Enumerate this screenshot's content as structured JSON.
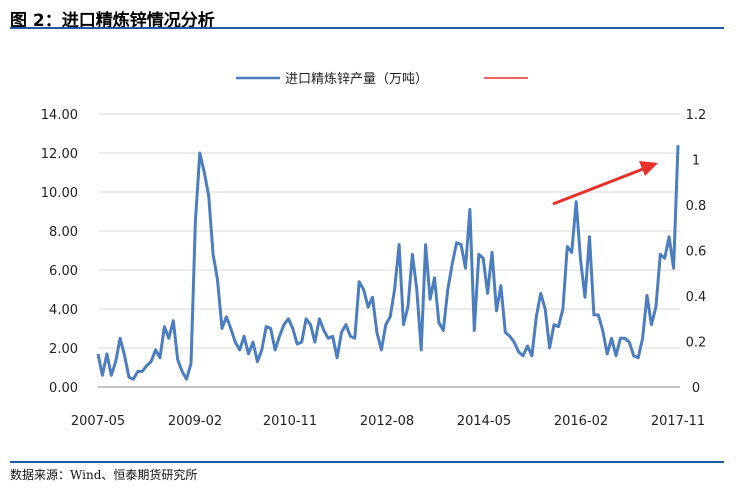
{
  "figure": {
    "title": "图 2：进口精炼锌情况分析",
    "source": "数据来源：Wind、恒泰期货研究所"
  },
  "colors": {
    "line": "#4a7ebf",
    "arrow": "#e8312a",
    "rule": "#1f5aa3",
    "grid": "#d9d9d9",
    "axis": "#888888"
  },
  "chart_data": {
    "type": "line",
    "title": "",
    "xlabel": "",
    "ylabel": "",
    "x_ticks": [
      "2007-05",
      "2009-02",
      "2010-11",
      "2012-08",
      "2014-05",
      "2016-02",
      "2017-11"
    ],
    "y_left": {
      "ylim": [
        0,
        14
      ],
      "ticks": [
        "0.00",
        "2.00",
        "4.00",
        "6.00",
        "8.00",
        "10.00",
        "12.00",
        "14.00"
      ]
    },
    "y_right": {
      "ylim": [
        0,
        1.2
      ],
      "ticks": [
        "0",
        "0.2",
        "0.4",
        "0.6",
        "0.8",
        "1",
        "1.2"
      ]
    },
    "grid": "horizontal",
    "legend": {
      "position": "top-center",
      "entries": [
        "进口精炼锌产量（万吨）",
        ""
      ]
    },
    "series": [
      {
        "name": "进口精炼锌产量（万吨）",
        "axis": "left",
        "values": [
          1.7,
          0.6,
          1.7,
          0.6,
          1.3,
          2.5,
          1.6,
          0.5,
          0.4,
          0.8,
          0.8,
          1.1,
          1.3,
          1.9,
          1.5,
          3.1,
          2.5,
          3.4,
          1.4,
          0.8,
          0.4,
          1.2,
          8.5,
          12.0,
          11.0,
          9.8,
          6.8,
          5.5,
          3.0,
          3.6,
          3.0,
          2.3,
          1.9,
          2.6,
          1.7,
          2.3,
          1.3,
          1.9,
          3.1,
          3.0,
          1.9,
          2.6,
          3.2,
          3.5,
          3.0,
          2.2,
          2.3,
          3.5,
          3.2,
          2.3,
          3.5,
          2.9,
          2.5,
          2.6,
          1.5,
          2.8,
          3.2,
          2.6,
          2.5,
          5.4,
          5.0,
          4.1,
          4.6,
          2.8,
          1.9,
          3.2,
          3.6,
          5.0,
          7.3,
          3.2,
          4.1,
          6.8,
          5.0,
          1.9,
          7.3,
          4.5,
          5.6,
          3.3,
          2.9,
          5.0,
          6.3,
          7.4,
          7.3,
          6.1,
          9.1,
          2.9,
          6.8,
          6.6,
          4.8,
          6.9,
          3.9,
          5.2,
          2.8,
          2.6,
          2.3,
          1.8,
          1.6,
          2.1,
          1.6,
          3.6,
          4.8,
          4.0,
          2.0,
          3.2,
          3.1,
          4.0,
          7.2,
          6.9,
          9.5,
          6.5,
          4.6,
          7.7,
          3.7,
          3.7,
          2.9,
          1.7,
          2.5,
          1.6,
          2.5,
          2.5,
          2.3,
          1.6,
          1.5,
          2.5,
          4.7,
          3.2,
          4.1,
          6.8,
          6.6,
          7.7,
          6.1,
          12.4
        ]
      },
      {
        "name": "",
        "axis": "right",
        "values": []
      }
    ]
  }
}
